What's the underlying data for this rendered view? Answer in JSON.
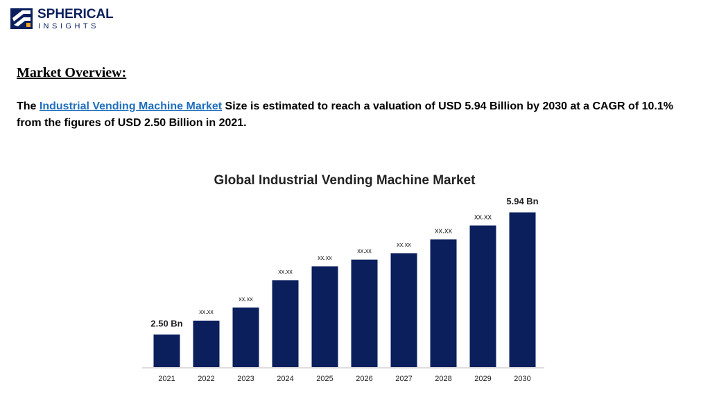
{
  "logo": {
    "name": "SPHERICAL",
    "tagline": "INSIGHTS"
  },
  "heading": "Market Overview:",
  "paragraph": {
    "lead": "The",
    "link": "Industrial Vending Machine Market",
    "rest": "Size is estimated to reach a valuation of USD 5.94 Billion by 2030 at a CAGR of 10.1% from the figures of USD 2.50 Billion in 2021."
  },
  "chart_data": {
    "type": "bar",
    "title": "Global Industrial Vending Machine Market",
    "categories": [
      "2021",
      "2022",
      "2023",
      "2024",
      "2025",
      "2026",
      "2027",
      "2028",
      "2029",
      "2030"
    ],
    "values": [
      2.5,
      2.89,
      3.26,
      4.03,
      4.42,
      4.61,
      4.79,
      5.18,
      5.57,
      5.94
    ],
    "value_labels": [
      "2.50 Bn",
      "xx.xx",
      "xx.xx",
      "xx.xx",
      "xx.xx",
      "xx.xx",
      "xx.xx",
      "xx.xx",
      "xx.xx",
      "5.94 Bn"
    ],
    "color": "#0a1f5c",
    "ylim": [
      1.58,
      6.4
    ]
  }
}
